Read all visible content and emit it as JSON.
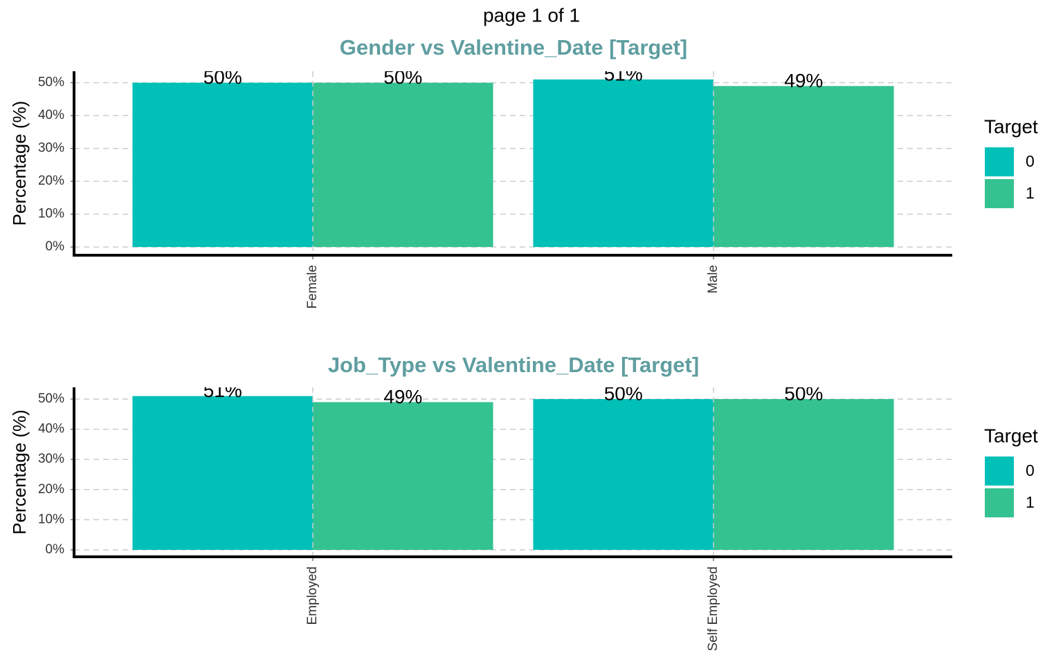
{
  "title": "page 1 of 1",
  "chart_data": [
    {
      "type": "bar",
      "title": "Gender vs Valentine_Date [Target]",
      "y_label": "Percentage (%)",
      "categories": [
        "Female",
        "Male"
      ],
      "series": [
        {
          "name": "0",
          "color": "#00c0b8",
          "values": [
            50,
            51
          ],
          "value_labels": [
            "50%",
            "51%"
          ]
        },
        {
          "name": "1",
          "color": "#34c290",
          "values": [
            50,
            49
          ],
          "value_labels": [
            "50%",
            "49%"
          ]
        }
      ],
      "legend_title": "Target",
      "legend": "right",
      "ylim": [
        -2.5,
        53.5
      ],
      "yticks": [
        {
          "value": 0,
          "label": "0%"
        },
        {
          "value": 10,
          "label": "10%"
        },
        {
          "value": 20,
          "label": "20%"
        },
        {
          "value": 30,
          "label": "30%"
        },
        {
          "value": 40,
          "label": "40%"
        },
        {
          "value": 50,
          "label": "50%"
        }
      ],
      "grid": true
    },
    {
      "type": "bar",
      "title": "Job_Type vs Valentine_Date [Target]",
      "y_label": "Percentage (%)",
      "categories": [
        "Employed",
        "Self Employed"
      ],
      "series": [
        {
          "name": "0",
          "color": "#00c0b8",
          "values": [
            51,
            50
          ],
          "value_labels": [
            "51%",
            "50%"
          ]
        },
        {
          "name": "1",
          "color": "#34c290",
          "values": [
            49,
            50
          ],
          "value_labels": [
            "49%",
            "50%"
          ]
        }
      ],
      "legend_title": "Target",
      "legend": "right",
      "ylim": [
        -2.3,
        53.9
      ],
      "yticks": [
        {
          "value": 0,
          "label": "0%"
        },
        {
          "value": 10,
          "label": "10%"
        },
        {
          "value": 20,
          "label": "20%"
        },
        {
          "value": 30,
          "label": "30%"
        },
        {
          "value": 40,
          "label": "40%"
        },
        {
          "value": 50,
          "label": "50%"
        }
      ],
      "grid": true
    }
  ]
}
